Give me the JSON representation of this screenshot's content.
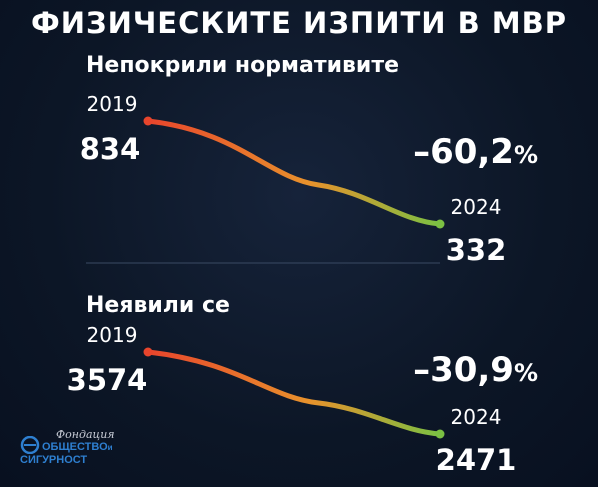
{
  "title": "ФИЗИЧЕСКИТЕ ИЗПИТИ В МВР",
  "logo": {
    "script": "Фондация",
    "line1": "ОБЩЕСТВО",
    "small": "и",
    "line2": "СИГУРНОСТ"
  },
  "colors": {
    "background": "#0c1626",
    "text": "#ffffff",
    "start_red": "#e8452c",
    "mid_orange": "#e8922c",
    "end_green": "#7bc043",
    "logo_blue": "#2e7fd0"
  },
  "chart_data": [
    {
      "type": "line",
      "title": "Непокрили нормативите",
      "x": [
        "2019",
        "2024"
      ],
      "values": [
        834,
        332
      ],
      "labels": [
        "834",
        "332"
      ],
      "change_label": "–60,2",
      "change_unit": "%"
    },
    {
      "type": "line",
      "title": "Неявили се",
      "x": [
        "2019",
        "2024"
      ],
      "values": [
        3574,
        2471
      ],
      "labels": [
        "3574",
        "2471"
      ],
      "change_label": "–30,9",
      "change_unit": "%"
    }
  ]
}
